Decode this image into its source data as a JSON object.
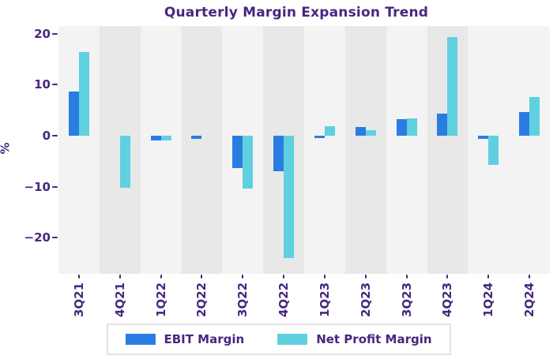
{
  "title": "Quarterly Margin Expansion Trend",
  "chart_data": {
    "type": "bar",
    "title": "Quarterly Margin Expansion Trend",
    "categories": [
      "3Q21",
      "4Q21",
      "1Q22",
      "2Q22",
      "3Q22",
      "4Q22",
      "1Q23",
      "2Q23",
      "3Q23",
      "4Q23",
      "1Q24",
      "2Q24"
    ],
    "series": [
      {
        "name": "EBIT Margin",
        "color": "#2b7ce2",
        "values": [
          8.7,
          0,
          -1.0,
          -0.6,
          -6.3,
          -7.0,
          -0.5,
          1.7,
          3.3,
          4.3,
          -0.7,
          4.7
        ]
      },
      {
        "name": "Net Profit Margin",
        "color": "#5fd0e0",
        "values": [
          16.4,
          -10.2,
          -1.0,
          0,
          -10.4,
          -24.0,
          1.9,
          1.0,
          3.4,
          19.3,
          -5.8,
          7.6
        ]
      }
    ],
    "xlabel": "",
    "ylabel": "%",
    "yticks": [
      20,
      10,
      0,
      -10,
      -20
    ],
    "ylim": [
      -27.1,
      21.5
    ],
    "grid": false,
    "legend_position": "bottom",
    "shaded_columns": [
      "4Q21",
      "2Q22",
      "4Q22",
      "2Q23",
      "4Q23"
    ],
    "band_color_light": "#f3f3f3",
    "band_color_dark": "#e8e8e8"
  },
  "colors": {
    "text_purple": "#45287f",
    "background": "#ffffff",
    "legend_border": "#e2e2e2"
  }
}
